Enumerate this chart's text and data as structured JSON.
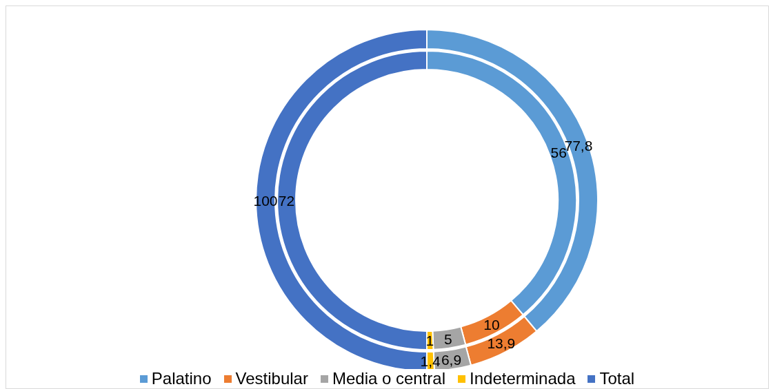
{
  "chart_data": {
    "type": "donut",
    "categories": [
      "Palatino",
      "Vestibular",
      "Media o central",
      "Indeterminada",
      "Total"
    ],
    "colors": [
      "#5b9bd5",
      "#ed7d31",
      "#a5a5a5",
      "#ffc000",
      "#4472c4"
    ],
    "series": [
      {
        "values": [
          56,
          10,
          5,
          1,
          72
        ],
        "value_labels": [
          "56",
          "10",
          "5",
          "1",
          "72"
        ]
      },
      {
        "values": [
          77.8,
          13.9,
          6.9,
          1.4,
          100
        ],
        "value_labels": [
          "77,8",
          "13,9",
          "6,9",
          "1,4",
          "100"
        ]
      }
    ],
    "legend": "bottom"
  }
}
